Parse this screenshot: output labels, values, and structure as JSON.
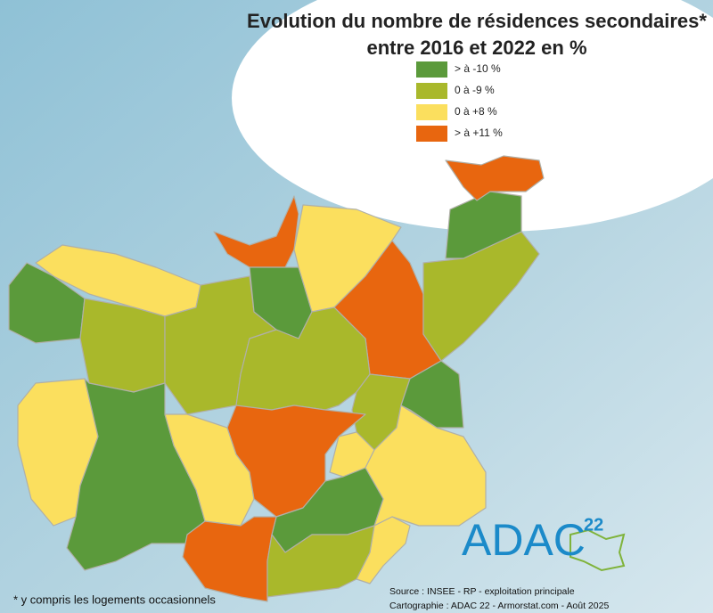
{
  "header": {
    "title_lines": [
      "Evolution du nombre de résidences secondaires*",
      "entre 2016 et 2022 en %"
    ]
  },
  "legend": [
    {
      "label": "> à -10 %",
      "color": "#5b9a3b"
    },
    {
      "label": "0 à -9 %",
      "color": "#a9b82b"
    },
    {
      "label": "0 à +8 %",
      "color": "#fbdf5e"
    },
    {
      "label": "> à +11 %",
      "color": "#e8660f"
    }
  ],
  "footnote": "* y compris les logements occasionnels",
  "source_lines": [
    "Source : INSEE - RP - exploitation principale",
    "Cartographie : ADAC 22 - Armorstat.com - Août 2025"
  ],
  "logo": {
    "text": "ADAC",
    "number": "22"
  }
}
